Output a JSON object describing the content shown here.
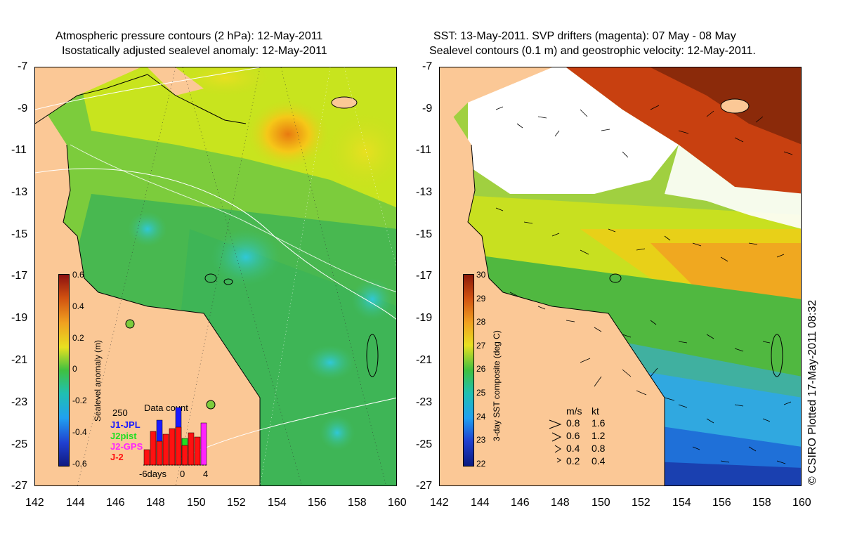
{
  "left_panel": {
    "title_line1": "Atmospheric pressure contours (2 hPa): 12-May-2011",
    "title_line2": "Isostatically adjusted sealevel anomaly: 12-May-2011",
    "colorbar": {
      "label": "Sealevel anomaly (m)",
      "ticks": [
        "0.6",
        "0.4",
        "0.2",
        "0",
        "-0.2",
        "-0.4",
        "-0.6"
      ]
    },
    "data_count": {
      "title": "Data count",
      "max_label": "250",
      "legend": [
        {
          "label": "J1-JPL",
          "color": "#1a1aff"
        },
        {
          "label": "J2pist",
          "color": "#22dd22"
        },
        {
          "label": "J2-GPS",
          "color": "#ff22ff"
        },
        {
          "label": "J-2",
          "color": "#ff1111"
        }
      ],
      "x_labels": [
        "-6days",
        "0",
        "4"
      ]
    }
  },
  "right_panel": {
    "title_line1": "SST: 13-May-2011. SVP drifters (magenta): 07 May - 08 May",
    "title_line2": "Sealevel contours (0.1 m) and geostrophic velocity: 12-May-2011.",
    "colorbar": {
      "label": "3-day SST composite (deg C)",
      "ticks": [
        "30",
        "29",
        "28",
        "27",
        "26",
        "25",
        "24",
        "23",
        "22"
      ]
    },
    "velocity_legend": {
      "header_ms": "m/s",
      "header_kt": "kt",
      "rows": [
        {
          "ms": "0.8",
          "kt": "1.6"
        },
        {
          "ms": "0.6",
          "kt": "1.2"
        },
        {
          "ms": "0.4",
          "kt": "0.8"
        },
        {
          "ms": "0.2",
          "kt": "0.4"
        }
      ]
    }
  },
  "axes": {
    "lat_ticks": [
      "-7",
      "-9",
      "-11",
      "-13",
      "-15",
      "-17",
      "-19",
      "-21",
      "-23",
      "-25",
      "-27"
    ],
    "lon_ticks": [
      "142",
      "144",
      "146",
      "148",
      "150",
      "152",
      "154",
      "156",
      "158",
      "160"
    ]
  },
  "credit": "© CSIRO Plotted 17-May-2011 08:32",
  "colors": {
    "land": "#fbc896",
    "sla_low": "#1a2a8c",
    "sla_zero": "#35b94a",
    "sla_high": "#8b1010",
    "sst_cold": "#0a1a80",
    "sst_warm": "#8b1a0a",
    "cloud": "#ffffff"
  }
}
